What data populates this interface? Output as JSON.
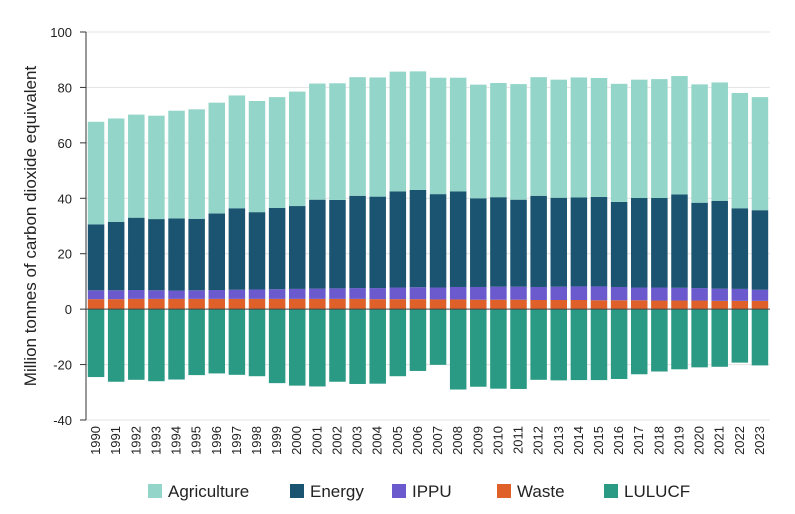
{
  "chart_data": {
    "type": "bar",
    "stacked": true,
    "title": "",
    "xlabel": "",
    "ylabel": "Million tonnes of carbon dioxide equivalent",
    "ylim": [
      -40,
      100
    ],
    "yticks": [
      -40,
      -20,
      0,
      20,
      40,
      60,
      80,
      100
    ],
    "grid": true,
    "legend_position": "bottom",
    "categories": [
      "1990",
      "1991",
      "1992",
      "1993",
      "1994",
      "1995",
      "1996",
      "1997",
      "1998",
      "1999",
      "2000",
      "2001",
      "2002",
      "2003",
      "2004",
      "2005",
      "2006",
      "2007",
      "2008",
      "2009",
      "2010",
      "2011",
      "2012",
      "2013",
      "2014",
      "2015",
      "2016",
      "2017",
      "2018",
      "2019",
      "2020",
      "2021",
      "2022",
      "2023"
    ],
    "series": [
      {
        "name": "Waste",
        "color": "#e0602a",
        "values": [
          3.6,
          3.6,
          3.7,
          3.7,
          3.7,
          3.7,
          3.7,
          3.7,
          3.7,
          3.7,
          3.7,
          3.7,
          3.7,
          3.7,
          3.6,
          3.6,
          3.6,
          3.5,
          3.5,
          3.4,
          3.4,
          3.4,
          3.3,
          3.3,
          3.3,
          3.2,
          3.2,
          3.2,
          3.1,
          3.1,
          3.1,
          3.0,
          3.0,
          3.0
        ]
      },
      {
        "name": "IPPU",
        "color": "#6a5acd",
        "values": [
          3.2,
          3.2,
          3.2,
          3.1,
          3.0,
          3.1,
          3.2,
          3.3,
          3.4,
          3.5,
          3.6,
          3.7,
          3.8,
          3.9,
          4.0,
          4.2,
          4.3,
          4.3,
          4.5,
          4.6,
          4.7,
          4.7,
          4.7,
          4.8,
          4.9,
          5.0,
          4.8,
          4.6,
          4.7,
          4.6,
          4.5,
          4.4,
          4.3,
          4.0
        ]
      },
      {
        "name": "Energy",
        "color": "#1a5470",
        "values": [
          23.8,
          24.7,
          26.1,
          25.7,
          26.0,
          25.8,
          27.6,
          29.4,
          27.9,
          29.3,
          29.9,
          32.1,
          31.9,
          33.3,
          33.0,
          34.7,
          35.1,
          33.7,
          34.5,
          32.0,
          32.3,
          31.4,
          32.9,
          32.1,
          32.1,
          32.3,
          30.7,
          32.3,
          32.3,
          33.7,
          30.8,
          31.7,
          29.1,
          28.7
        ]
      },
      {
        "name": "Agriculture",
        "color": "#93d5c8",
        "values": [
          37.0,
          37.3,
          37.2,
          37.3,
          38.9,
          39.5,
          40.0,
          40.7,
          40.1,
          40.0,
          41.3,
          41.9,
          42.1,
          42.8,
          43.0,
          43.2,
          42.8,
          42.0,
          41.0,
          41.0,
          41.2,
          41.7,
          42.8,
          42.6,
          43.3,
          42.9,
          42.6,
          42.7,
          42.9,
          42.7,
          42.7,
          42.7,
          41.6,
          40.8
        ]
      },
      {
        "name": "LULUCF",
        "color": "#2a9a85",
        "values": [
          -24.5,
          -26.2,
          -25.5,
          -26.0,
          -25.4,
          -23.8,
          -23.2,
          -23.7,
          -24.2,
          -26.7,
          -27.6,
          -27.9,
          -26.2,
          -27.0,
          -26.9,
          -24.2,
          -22.3,
          -20.1,
          -29.0,
          -28.0,
          -28.7,
          -28.8,
          -25.5,
          -25.7,
          -25.6,
          -25.6,
          -25.2,
          -23.5,
          -22.5,
          -21.7,
          -21.0,
          -20.8,
          -19.3,
          -20.3
        ]
      }
    ],
    "legend_order": [
      "Agriculture",
      "Energy",
      "IPPU",
      "Waste",
      "LULUCF"
    ]
  }
}
